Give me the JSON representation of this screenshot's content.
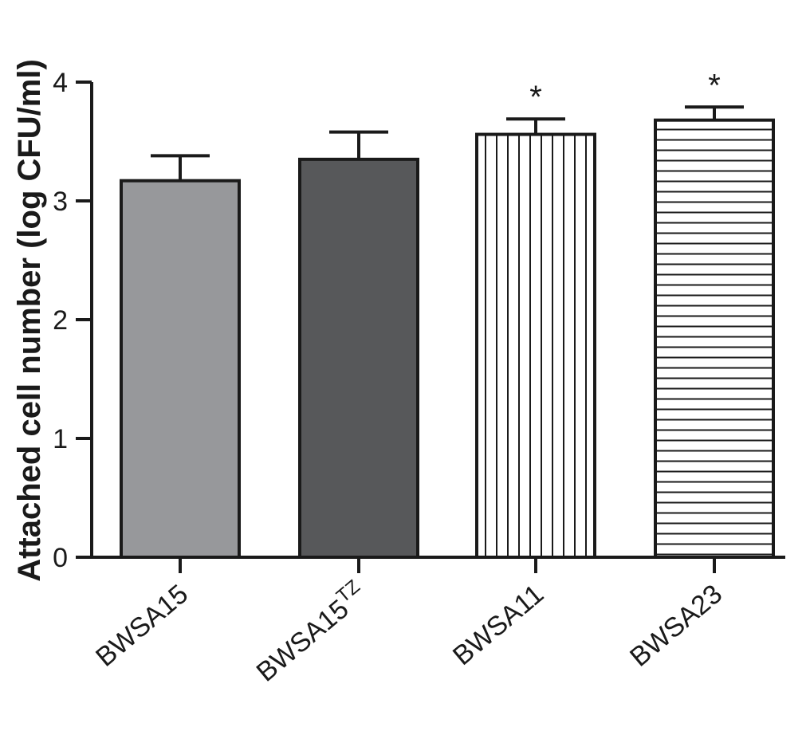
{
  "chart_data": {
    "type": "bar",
    "ylabel": "Attached cell number (log CFU/ml)",
    "ylim": [
      0,
      4
    ],
    "yticks": [
      "0",
      "1",
      "2",
      "3",
      "4"
    ],
    "grid": false,
    "categories": [
      {
        "label": "BWSA15",
        "superscript": ""
      },
      {
        "label": "BWSA15",
        "superscript": "TZ"
      },
      {
        "label": "BWSA11",
        "superscript": ""
      },
      {
        "label": "BWSA23",
        "superscript": ""
      }
    ],
    "values": [
      3.17,
      3.35,
      3.56,
      3.68
    ],
    "errors": [
      0.21,
      0.23,
      0.13,
      0.11
    ],
    "significance": [
      "",
      "",
      "*",
      "*"
    ],
    "fills": [
      {
        "color": "#97989b",
        "pattern": "solid"
      },
      {
        "color": "#57585a",
        "pattern": "solid"
      },
      {
        "color": "#ffffff",
        "pattern": "vertical-lines"
      },
      {
        "color": "#ffffff",
        "pattern": "horizontal-lines"
      }
    ]
  }
}
